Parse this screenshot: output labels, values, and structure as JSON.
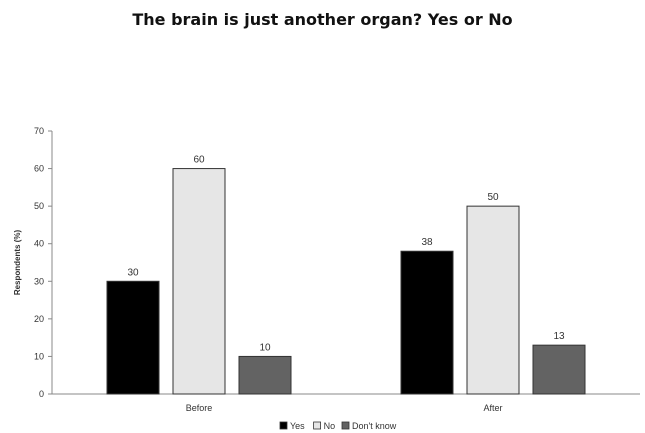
{
  "chart_data": {
    "type": "bar",
    "title": "The brain is just another organ? Yes or No",
    "ylabel": "Respondents (%)",
    "xlabel": "",
    "categories": [
      "Before",
      "After"
    ],
    "ylim": [
      0,
      70
    ],
    "yticks": [
      0,
      10,
      20,
      30,
      40,
      50,
      60,
      70
    ],
    "series": [
      {
        "name": "Yes",
        "values": [
          30,
          38
        ],
        "color": "#000000"
      },
      {
        "name": "No",
        "values": [
          60,
          50
        ],
        "color": "#e6e6e6"
      },
      {
        "name": "Don't know",
        "values": [
          10,
          13
        ],
        "color": "#636363"
      }
    ],
    "data_labels": true,
    "legend": "bottom",
    "grid": false
  }
}
